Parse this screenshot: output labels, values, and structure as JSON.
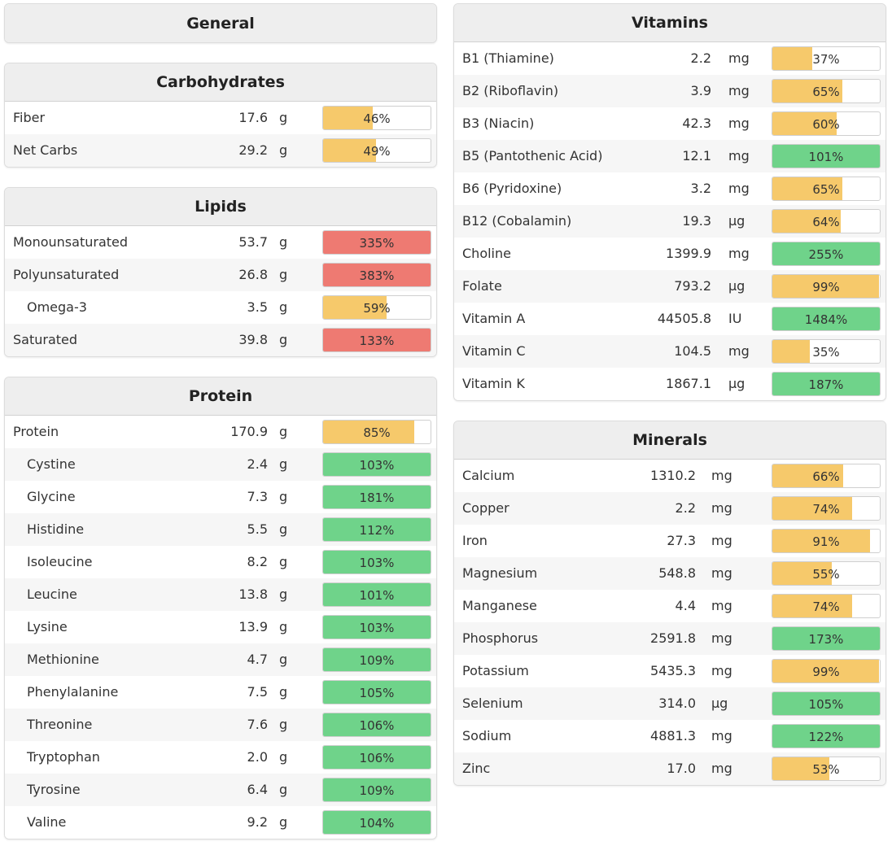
{
  "general": {
    "title": "General"
  },
  "carbohydrates": {
    "title": "Carbohydrates",
    "rows": [
      {
        "name": "Fiber",
        "amount": "17.6",
        "unit": "g",
        "pct": "46%",
        "fill": 0.46,
        "status": "ok",
        "indent": false
      },
      {
        "name": "Net Carbs",
        "amount": "29.2",
        "unit": "g",
        "pct": "49%",
        "fill": 0.49,
        "status": "ok",
        "indent": false
      }
    ]
  },
  "lipids": {
    "title": "Lipids",
    "rows": [
      {
        "name": "Monounsaturated",
        "amount": "53.7",
        "unit": "g",
        "pct": "335%",
        "fill": 1,
        "status": "over",
        "indent": false
      },
      {
        "name": "Polyunsaturated",
        "amount": "26.8",
        "unit": "g",
        "pct": "383%",
        "fill": 1,
        "status": "over",
        "indent": false
      },
      {
        "name": "Omega-3",
        "amount": "3.5",
        "unit": "g",
        "pct": "59%",
        "fill": 0.59,
        "status": "ok",
        "indent": true
      },
      {
        "name": "Saturated",
        "amount": "39.8",
        "unit": "g",
        "pct": "133%",
        "fill": 1,
        "status": "over",
        "indent": false
      }
    ]
  },
  "protein": {
    "title": "Protein",
    "rows": [
      {
        "name": "Protein",
        "amount": "170.9",
        "unit": "g",
        "pct": "85%",
        "fill": 0.85,
        "status": "ok",
        "indent": false
      },
      {
        "name": "Cystine",
        "amount": "2.4",
        "unit": "g",
        "pct": "103%",
        "fill": 1,
        "status": "good",
        "indent": true
      },
      {
        "name": "Glycine",
        "amount": "7.3",
        "unit": "g",
        "pct": "181%",
        "fill": 1,
        "status": "good",
        "indent": true
      },
      {
        "name": "Histidine",
        "amount": "5.5",
        "unit": "g",
        "pct": "112%",
        "fill": 1,
        "status": "good",
        "indent": true
      },
      {
        "name": "Isoleucine",
        "amount": "8.2",
        "unit": "g",
        "pct": "103%",
        "fill": 1,
        "status": "good",
        "indent": true
      },
      {
        "name": "Leucine",
        "amount": "13.8",
        "unit": "g",
        "pct": "101%",
        "fill": 1,
        "status": "good",
        "indent": true
      },
      {
        "name": "Lysine",
        "amount": "13.9",
        "unit": "g",
        "pct": "103%",
        "fill": 1,
        "status": "good",
        "indent": true
      },
      {
        "name": "Methionine",
        "amount": "4.7",
        "unit": "g",
        "pct": "109%",
        "fill": 1,
        "status": "good",
        "indent": true
      },
      {
        "name": "Phenylalanine",
        "amount": "7.5",
        "unit": "g",
        "pct": "105%",
        "fill": 1,
        "status": "good",
        "indent": true
      },
      {
        "name": "Threonine",
        "amount": "7.6",
        "unit": "g",
        "pct": "106%",
        "fill": 1,
        "status": "good",
        "indent": true
      },
      {
        "name": "Tryptophan",
        "amount": "2.0",
        "unit": "g",
        "pct": "106%",
        "fill": 1,
        "status": "good",
        "indent": true
      },
      {
        "name": "Tyrosine",
        "amount": "6.4",
        "unit": "g",
        "pct": "109%",
        "fill": 1,
        "status": "good",
        "indent": true
      },
      {
        "name": "Valine",
        "amount": "9.2",
        "unit": "g",
        "pct": "104%",
        "fill": 1,
        "status": "good",
        "indent": true
      }
    ]
  },
  "vitamins": {
    "title": "Vitamins",
    "rows": [
      {
        "name": "B1 (Thiamine)",
        "amount": "2.2",
        "unit": "mg",
        "pct": "37%",
        "fill": 0.37,
        "status": "ok",
        "indent": false
      },
      {
        "name": "B2 (Riboflavin)",
        "amount": "3.9",
        "unit": "mg",
        "pct": "65%",
        "fill": 0.65,
        "status": "ok",
        "indent": false
      },
      {
        "name": "B3 (Niacin)",
        "amount": "42.3",
        "unit": "mg",
        "pct": "60%",
        "fill": 0.6,
        "status": "ok",
        "indent": false
      },
      {
        "name": "B5 (Pantothenic Acid)",
        "amount": "12.1",
        "unit": "mg",
        "pct": "101%",
        "fill": 1,
        "status": "good",
        "indent": false
      },
      {
        "name": "B6 (Pyridoxine)",
        "amount": "3.2",
        "unit": "mg",
        "pct": "65%",
        "fill": 0.65,
        "status": "ok",
        "indent": false
      },
      {
        "name": "B12 (Cobalamin)",
        "amount": "19.3",
        "unit": "µg",
        "pct": "64%",
        "fill": 0.64,
        "status": "ok",
        "indent": false
      },
      {
        "name": "Choline",
        "amount": "1399.9",
        "unit": "mg",
        "pct": "255%",
        "fill": 1,
        "status": "good",
        "indent": false
      },
      {
        "name": "Folate",
        "amount": "793.2",
        "unit": "µg",
        "pct": "99%",
        "fill": 0.99,
        "status": "ok",
        "indent": false
      },
      {
        "name": "Vitamin A",
        "amount": "44505.8",
        "unit": "IU",
        "pct": "1484%",
        "fill": 1,
        "status": "good",
        "indent": false
      },
      {
        "name": "Vitamin C",
        "amount": "104.5",
        "unit": "mg",
        "pct": "35%",
        "fill": 0.35,
        "status": "ok",
        "indent": false
      },
      {
        "name": "Vitamin K",
        "amount": "1867.1",
        "unit": "µg",
        "pct": "187%",
        "fill": 1,
        "status": "good",
        "indent": false
      }
    ]
  },
  "minerals": {
    "title": "Minerals",
    "rows": [
      {
        "name": "Calcium",
        "amount": "1310.2",
        "unit": "mg",
        "pct": "66%",
        "fill": 0.66,
        "status": "ok",
        "indent": false
      },
      {
        "name": "Copper",
        "amount": "2.2",
        "unit": "mg",
        "pct": "74%",
        "fill": 0.74,
        "status": "ok",
        "indent": false
      },
      {
        "name": "Iron",
        "amount": "27.3",
        "unit": "mg",
        "pct": "91%",
        "fill": 0.91,
        "status": "ok",
        "indent": false
      },
      {
        "name": "Magnesium",
        "amount": "548.8",
        "unit": "mg",
        "pct": "55%",
        "fill": 0.55,
        "status": "ok",
        "indent": false
      },
      {
        "name": "Manganese",
        "amount": "4.4",
        "unit": "mg",
        "pct": "74%",
        "fill": 0.74,
        "status": "ok",
        "indent": false
      },
      {
        "name": "Phosphorus",
        "amount": "2591.8",
        "unit": "mg",
        "pct": "173%",
        "fill": 1,
        "status": "good",
        "indent": false
      },
      {
        "name": "Potassium",
        "amount": "5435.3",
        "unit": "mg",
        "pct": "99%",
        "fill": 0.99,
        "status": "ok",
        "indent": false
      },
      {
        "name": "Selenium",
        "amount": "314.0",
        "unit": "µg",
        "pct": "105%",
        "fill": 1,
        "status": "good",
        "indent": false
      },
      {
        "name": "Sodium",
        "amount": "4881.3",
        "unit": "mg",
        "pct": "122%",
        "fill": 1,
        "status": "good",
        "indent": false
      },
      {
        "name": "Zinc",
        "amount": "17.0",
        "unit": "mg",
        "pct": "53%",
        "fill": 0.53,
        "status": "ok",
        "indent": false
      }
    ]
  },
  "colors": {
    "ok": "#f6c96b",
    "good": "#6fd38a",
    "over": "#ee7a72",
    "header_bg": "#eeeeee",
    "row_alt_bg": "#f6f6f6"
  }
}
